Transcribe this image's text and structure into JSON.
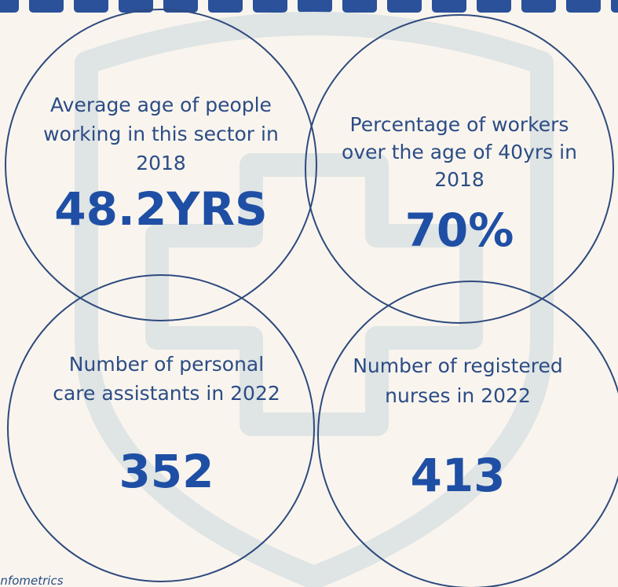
{
  "stats": [
    {
      "label": [
        "Average age of people",
        "working in this sector in",
        "2018"
      ],
      "value": "48.2YRS"
    },
    {
      "label": [
        "Percentage of workers",
        "over the age of 40yrs in",
        "2018"
      ],
      "value": "70%"
    },
    {
      "label": [
        "Number of personal",
        "care assistants in 2022"
      ],
      "value": "352"
    },
    {
      "label": [
        "Number of registered",
        "nurses in 2022"
      ],
      "value": "413"
    }
  ],
  "source": "Infometrics"
}
